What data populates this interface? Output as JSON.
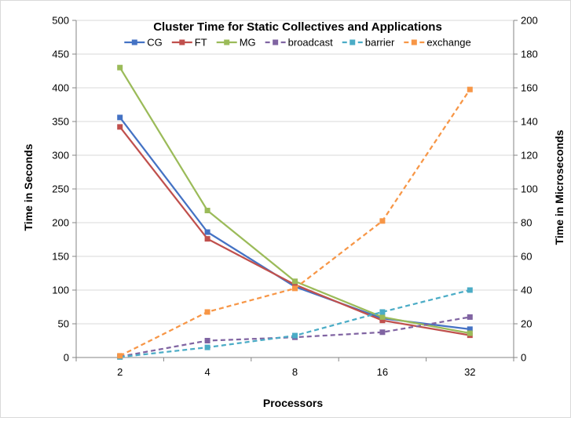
{
  "chart_data": {
    "type": "line",
    "title": "Cluster Time for Static Collectives and Applications",
    "xlabel": "Processors",
    "ylabel": "Time in Seconds",
    "y2label": "Time in Microseconds",
    "categories": [
      "2",
      "4",
      "8",
      "16",
      "32"
    ],
    "ylim": [
      0,
      500
    ],
    "y2lim": [
      0,
      200
    ],
    "yticks": [
      "0",
      "50",
      "100",
      "150",
      "200",
      "250",
      "300",
      "350",
      "400",
      "450",
      "500"
    ],
    "y2ticks": [
      "0",
      "20",
      "40",
      "60",
      "80",
      "100",
      "120",
      "140",
      "160",
      "180",
      "200"
    ],
    "grid": true,
    "legend": "top",
    "series": [
      {
        "name": "CG",
        "axis": "left",
        "dashed": false,
        "color": "#4472c4",
        "values": [
          356,
          186,
          105,
          58,
          42
        ]
      },
      {
        "name": "FT",
        "axis": "left",
        "dashed": false,
        "color": "#c0504d",
        "values": [
          342,
          176,
          108,
          55,
          33
        ]
      },
      {
        "name": "MG",
        "axis": "left",
        "dashed": false,
        "color": "#9bbb59",
        "values": [
          430,
          218,
          113,
          60,
          36
        ]
      },
      {
        "name": "broadcast",
        "axis": "right",
        "dashed": true,
        "color": "#8064a2",
        "values": [
          0.5,
          10,
          12,
          15,
          24
        ]
      },
      {
        "name": "barrier",
        "axis": "right",
        "dashed": true,
        "color": "#4bacc6",
        "values": [
          0.3,
          6,
          13,
          27,
          40
        ]
      },
      {
        "name": "exchange",
        "axis": "right",
        "dashed": true,
        "color": "#f79646",
        "values": [
          1,
          27,
          41,
          81,
          159
        ]
      }
    ]
  }
}
